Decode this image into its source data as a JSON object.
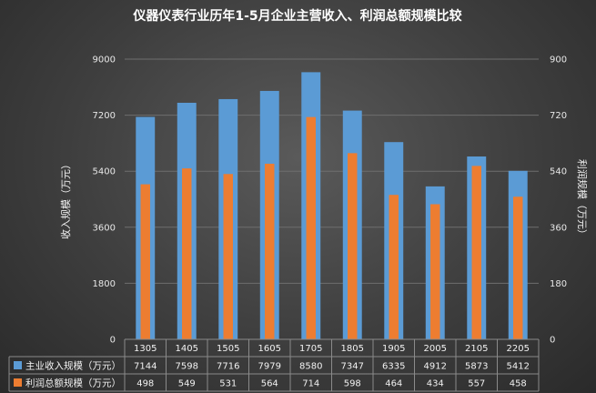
{
  "chart_data": {
    "type": "bar",
    "title": "仪器仪表行业历年1-5月企业主营收入、利润总额规模比较",
    "categories": [
      "1305",
      "1405",
      "1505",
      "1605",
      "1705",
      "1805",
      "1905",
      "2005",
      "2105",
      "2205"
    ],
    "series": [
      {
        "name": "主业收入规模（万元）",
        "axis": "left",
        "color": "#5b9bd5",
        "values": [
          7144,
          7598,
          7716,
          7979,
          8580,
          7347,
          6335,
          4912,
          5873,
          5412
        ]
      },
      {
        "name": "利润总额规模（万元）",
        "axis": "right",
        "color": "#ed7d31",
        "values": [
          498,
          549,
          531,
          564,
          714,
          598,
          464,
          434,
          557,
          458
        ]
      }
    ],
    "ylabel_left": "收入规模（万元）",
    "ylabel_right": "利润规模（万元）",
    "ylim_left": [
      0,
      9000
    ],
    "ylim_right": [
      0,
      900
    ],
    "yticks_left": [
      0,
      1800,
      3600,
      5400,
      7200,
      9000
    ],
    "yticks_right": [
      0,
      180,
      360,
      540,
      720,
      900
    ],
    "grid": true,
    "legend": "data-table"
  }
}
